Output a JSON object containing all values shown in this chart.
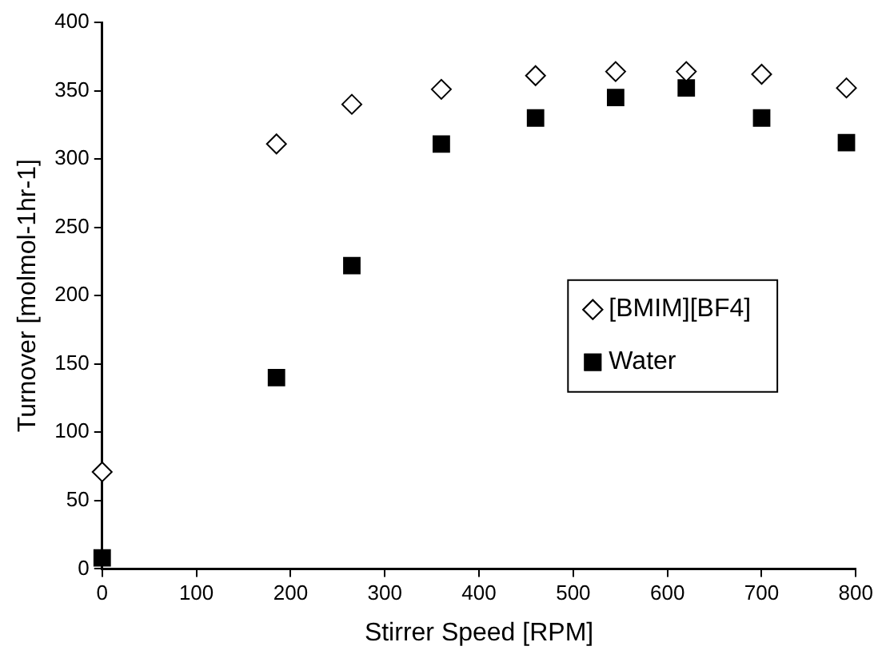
{
  "chart_data": {
    "type": "scatter",
    "xlabel": "Stirrer Speed [RPM]",
    "ylabel": "Turnover [molmol-1hr-1]",
    "xlim": [
      0,
      800
    ],
    "xticks": [
      0,
      100,
      200,
      300,
      400,
      500,
      600,
      700,
      800
    ],
    "ylim": [
      0,
      400
    ],
    "yticks": [
      0,
      50,
      100,
      150,
      200,
      250,
      300,
      350,
      400
    ],
    "grid": false,
    "legend": "center right",
    "series": [
      {
        "name": "[BMIM][BF4]",
        "color": "#000000",
        "marker": "diamond",
        "x": [
          0,
          185,
          265,
          360,
          460,
          545,
          620,
          700,
          790
        ],
        "values": [
          71,
          311,
          340,
          351,
          361,
          364,
          364,
          362,
          352
        ]
      },
      {
        "name": "Water",
        "color": "#000000",
        "marker": "square",
        "x": [
          0,
          185,
          265,
          360,
          460,
          545,
          620,
          700,
          790
        ],
        "values": [
          8,
          140,
          222,
          311,
          330,
          345,
          352,
          330,
          312
        ]
      }
    ]
  }
}
